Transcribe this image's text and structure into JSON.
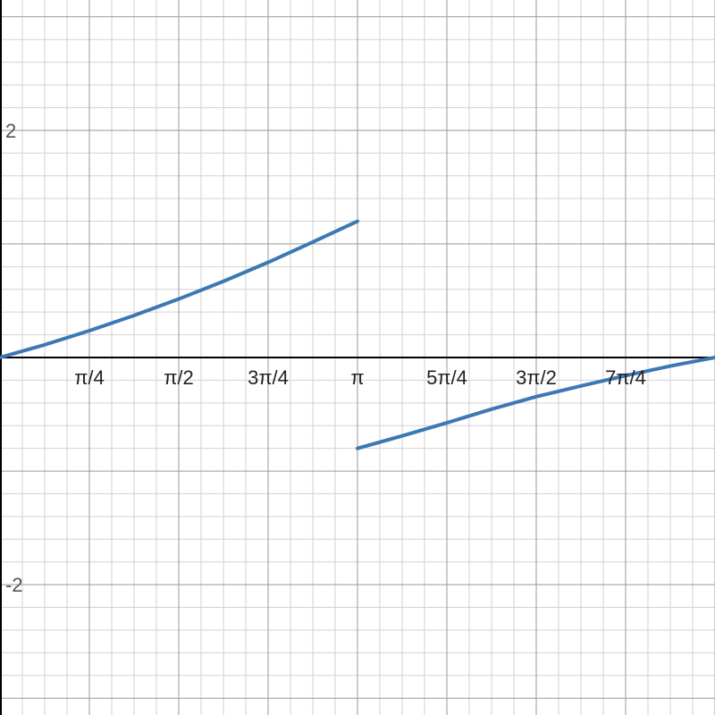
{
  "chart_data": {
    "type": "line",
    "title": "",
    "xlabel": "",
    "ylabel": "",
    "xlim": [
      0,
      6.283185
    ],
    "ylim": [
      -3.148,
      3.148
    ],
    "grid": true,
    "x_ticks": [
      {
        "value": 0.785398,
        "label": "π/4"
      },
      {
        "value": 1.570796,
        "label": "π/2"
      },
      {
        "value": 2.356194,
        "label": "3π/4"
      },
      {
        "value": 3.141593,
        "label": "π"
      },
      {
        "value": 3.926991,
        "label": "5π/4"
      },
      {
        "value": 4.712389,
        "label": "3π/2"
      },
      {
        "value": 5.497787,
        "label": "7π/4"
      }
    ],
    "y_ticks": [
      {
        "value": 2,
        "label": "2"
      },
      {
        "value": -2,
        "label": "-2"
      }
    ],
    "series": [
      {
        "color": "#3c78b4",
        "segments": [
          {
            "x": [
              0,
              0.3927,
              0.7854,
              1.1781,
              1.5708,
              1.9635,
              2.3562,
              2.7489,
              3.1416
            ],
            "y": [
              0,
              0.112,
              0.236,
              0.37,
              0.515,
              0.671,
              0.838,
              1.017,
              1.2
            ]
          },
          {
            "x": [
              3.1416,
              3.5343,
              3.927,
              4.3197,
              4.7124,
              5.1051,
              5.4978,
              5.8905,
              6.2832
            ],
            "y": [
              -0.8,
              -0.69,
              -0.575,
              -0.455,
              -0.345,
              -0.25,
              -0.16,
              -0.075,
              0
            ]
          }
        ]
      }
    ],
    "colors": {
      "curve": "#3c78b4",
      "axis": "#000000",
      "major_grid": "#999999",
      "minor_grid": "#d2d2d2"
    }
  }
}
